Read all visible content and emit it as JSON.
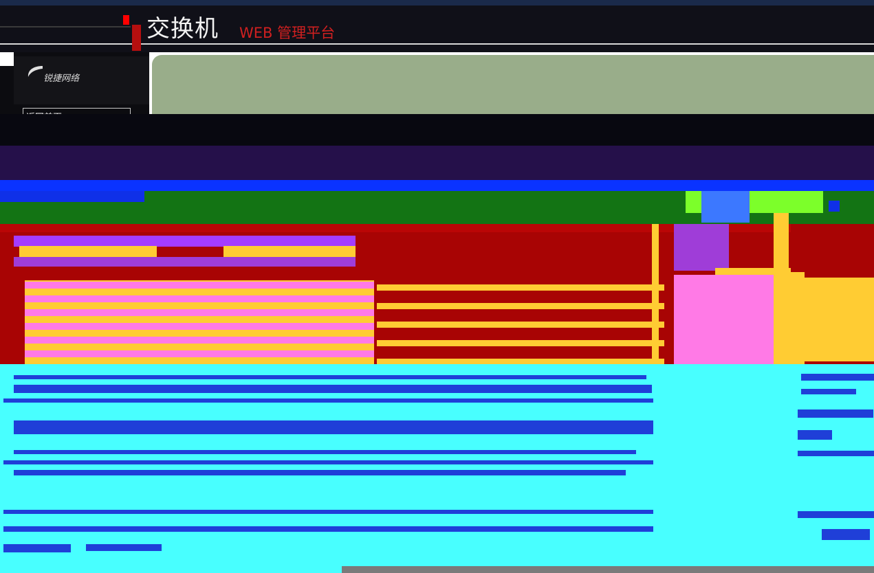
{
  "header": {
    "title": "交换机",
    "subtitle": "WEB 管理平台"
  },
  "sidebar": {
    "logo_text": "锐捷网络",
    "back_home": "返回首页"
  },
  "colors": {
    "header_bg": "#101018",
    "brand_red": "#d02020",
    "banner": "#99ad8a",
    "nav_blue": "#0a33ff",
    "toolbar_green": "#137414",
    "panel_red": "#a80404",
    "accent_yellow": "#ffcc33",
    "accent_pink": "#ff7ae6",
    "accent_purple": "#a43cff",
    "content_cyan": "#48ffff"
  }
}
